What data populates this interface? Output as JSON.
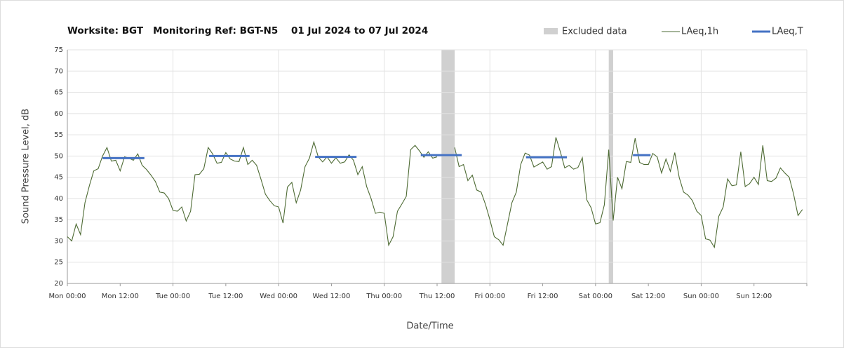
{
  "chart_data": {
    "type": "line",
    "title": "Worksite: BGT   Monitoring Ref: BGT-N5    01 Jul 2024 to 07 Jul 2024",
    "x_label": "Date/Time",
    "y_label": "Sound Pressure Level, dB",
    "xlim": [
      0,
      168
    ],
    "ylim": [
      20,
      75
    ],
    "yticks": [
      20,
      25,
      30,
      35,
      40,
      45,
      50,
      55,
      60,
      65,
      70,
      75
    ],
    "xticks": [
      {
        "value": 0,
        "label": "Mon 00:00"
      },
      {
        "value": 12,
        "label": "Mon 12:00"
      },
      {
        "value": 24,
        "label": "Tue 00:00"
      },
      {
        "value": 36,
        "label": "Tue 12:00"
      },
      {
        "value": 48,
        "label": "Wed 00:00"
      },
      {
        "value": 60,
        "label": "Wed 12:00"
      },
      {
        "value": 72,
        "label": "Thu 00:00"
      },
      {
        "value": 84,
        "label": "Thu 12:00"
      },
      {
        "value": 96,
        "label": "Fri 00:00"
      },
      {
        "value": 108,
        "label": "Fri 12:00"
      },
      {
        "value": 120,
        "label": "Sat 00:00"
      },
      {
        "value": 132,
        "label": "Sat 12:00"
      },
      {
        "value": 144,
        "label": "Sun 00:00"
      },
      {
        "value": 156,
        "label": "Sun 12:00"
      },
      {
        "value": 168,
        "label": ""
      }
    ],
    "xgrid": [
      24,
      48,
      72,
      96,
      120,
      144,
      168
    ],
    "grid": true,
    "legend": "top-right",
    "excluded": {
      "name": "Excluded data",
      "color": "#d0d0d0",
      "ranges": [
        [
          85,
          88
        ],
        [
          123,
          124
        ]
      ]
    },
    "x": [
      0,
      1,
      2,
      3,
      4,
      5,
      6,
      7,
      8,
      9,
      10,
      11,
      12,
      13,
      14,
      15,
      16,
      17,
      18,
      19,
      20,
      21,
      22,
      23,
      24,
      25,
      26,
      27,
      28,
      29,
      30,
      31,
      32,
      33,
      34,
      35,
      36,
      37,
      38,
      39,
      40,
      41,
      42,
      43,
      44,
      45,
      46,
      47,
      48,
      49,
      50,
      51,
      52,
      53,
      54,
      55,
      56,
      57,
      58,
      59,
      60,
      61,
      62,
      63,
      64,
      65,
      66,
      67,
      68,
      69,
      70,
      71,
      72,
      73,
      74,
      75,
      76,
      77,
      78,
      79,
      80,
      81,
      82,
      83,
      84,
      85,
      86,
      87,
      88,
      89,
      90,
      91,
      92,
      93,
      94,
      95,
      96,
      97,
      98,
      99,
      100,
      101,
      102,
      103,
      104,
      105,
      106,
      107,
      108,
      109,
      110,
      111,
      112,
      113,
      114,
      115,
      116,
      117,
      118,
      119,
      120,
      121,
      122,
      123,
      124,
      125,
      126,
      127,
      128,
      129,
      130,
      131,
      132,
      133,
      134,
      135,
      136,
      137,
      138,
      139,
      140,
      141,
      142,
      143,
      144,
      145,
      146,
      147,
      148,
      149,
      150,
      151,
      152,
      153,
      154,
      155,
      156,
      157,
      158,
      159,
      160,
      161,
      162,
      163,
      164,
      165,
      166,
      167
    ],
    "series": [
      {
        "name": "LAeq,1h",
        "color": "#4e6b34",
        "values": [
          31,
          30,
          34,
          31.5,
          39,
          43,
          46.5,
          47,
          50,
          52,
          48.8,
          49,
          46.5,
          49.8,
          49.5,
          49,
          50.5,
          47.8,
          46.8,
          45.5,
          44,
          41.5,
          41.3,
          40,
          37.2,
          37,
          38,
          34.7,
          37,
          45.6,
          45.7,
          47,
          52,
          50.5,
          48.3,
          48.5,
          50.8,
          49.3,
          48.8,
          48.7,
          52,
          48,
          49,
          47.8,
          44.5,
          41,
          39.5,
          38.3,
          38,
          34.2,
          42.7,
          43.8,
          39,
          42,
          47.5,
          49.5,
          53.3,
          49.8,
          48.6,
          49.8,
          48.3,
          49.6,
          48.3,
          48.6,
          50.3,
          49,
          45.6,
          47.5,
          42.8,
          40,
          36.5,
          36.8,
          36.5,
          29,
          31,
          37,
          38.7,
          40.5,
          51.5,
          52.5,
          51.2,
          49.7,
          51,
          49.5,
          49.8,
          null,
          null,
          null,
          52,
          47.5,
          48,
          44.2,
          45.5,
          42,
          41.5,
          38.6,
          35,
          31,
          30.3,
          29,
          34,
          39,
          41.5,
          48,
          50.7,
          50.2,
          47.4,
          48,
          48.6,
          46.9,
          47.5,
          54.4,
          51,
          47.2,
          47.8,
          46.9,
          47.3,
          49.6,
          39.7,
          37.8,
          34,
          34.3,
          38.5,
          51.5,
          34.8,
          45,
          42.3,
          48.7,
          48.5,
          54.2,
          48.5,
          48,
          48,
          50.6,
          49.8,
          46,
          49.3,
          46.4,
          50.8,
          45,
          41.5,
          40.8,
          39.5,
          37,
          36,
          30.5,
          30.2,
          28.5,
          35.8,
          38,
          44.6,
          43,
          43.2,
          51,
          42.8,
          43.5,
          45,
          43.3,
          52.5,
          44.2,
          44,
          44.8,
          47.2,
          46,
          45,
          41,
          36,
          37.4
        ]
      },
      {
        "name": "LAeq,T",
        "color": "#4472c4",
        "segments": [
          {
            "x": [
              8,
              17.5
            ],
            "value": 49.5
          },
          {
            "x": [
              32.2,
              41.4
            ],
            "value": 50
          },
          {
            "x": [
              56.3,
              65.7
            ],
            "value": 49.8
          },
          {
            "x": [
              80.3,
              89.6
            ],
            "value": 50.2
          },
          {
            "x": [
              104.2,
              113.5
            ],
            "value": 49.7
          },
          {
            "x": [
              128.5,
              132.5
            ],
            "value": 50.2
          }
        ]
      }
    ]
  }
}
